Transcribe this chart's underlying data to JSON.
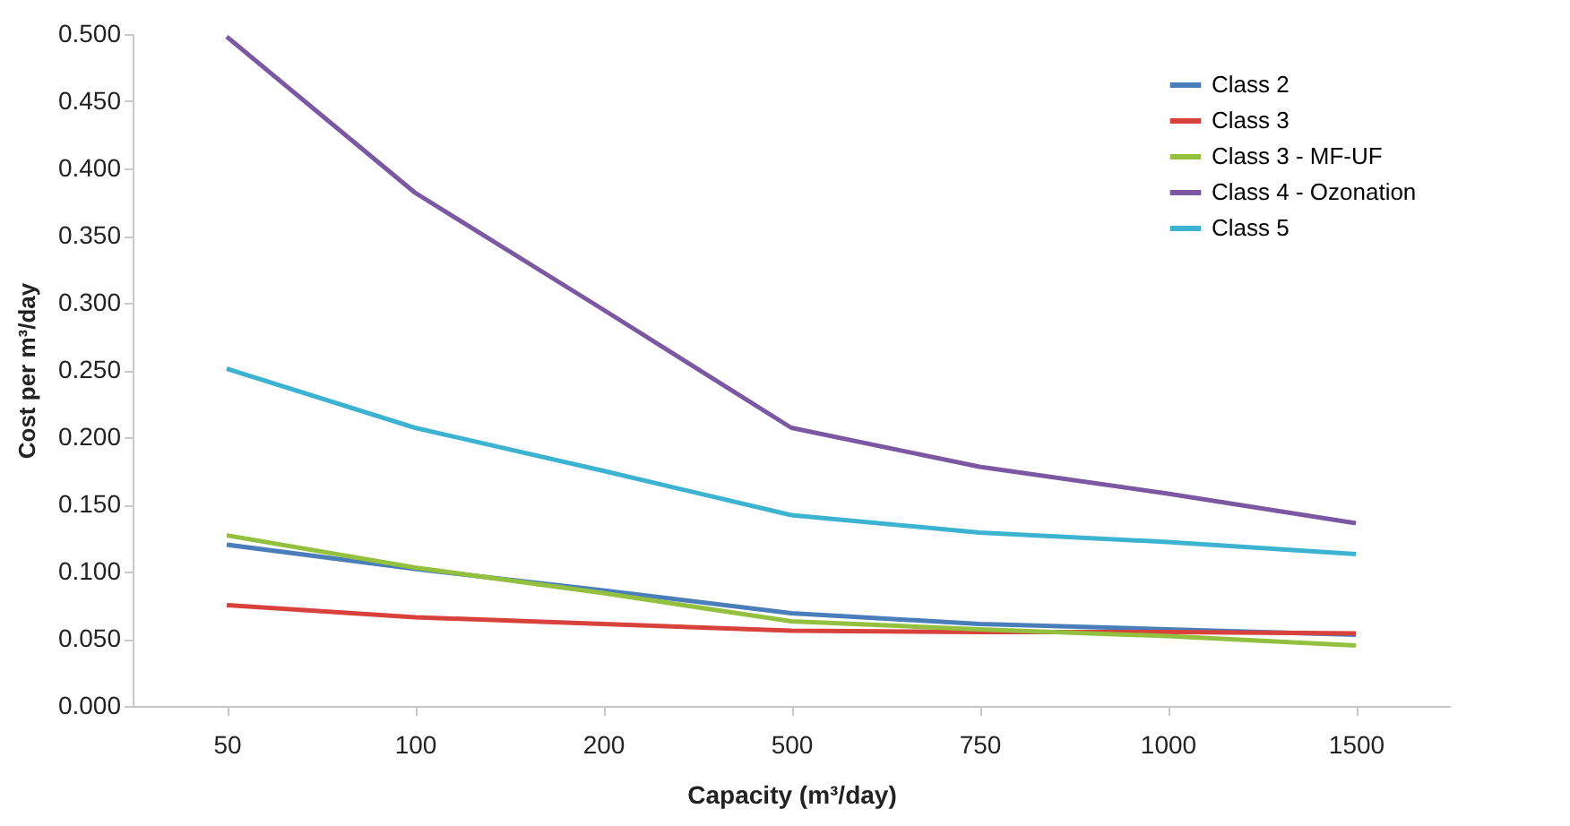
{
  "chart_data": {
    "type": "line",
    "xlabel": "Capacity (m³/day)",
    "ylabel": "Cost per m³/day",
    "categories": [
      "50",
      "100",
      "200",
      "500",
      "750",
      "1000",
      "1500"
    ],
    "series": [
      {
        "name": "Class 2",
        "color": "#4a7ebb",
        "values": [
          0.12,
          0.102,
          0.086,
          0.069,
          0.061,
          0.057,
          0.053
        ]
      },
      {
        "name": "Class 3",
        "color": "#d9413c",
        "values": [
          0.075,
          0.066,
          0.061,
          0.056,
          0.055,
          0.055,
          0.054
        ]
      },
      {
        "name": "Class 3 - MF-UF",
        "color": "#93c13f",
        "values": [
          0.127,
          0.103,
          0.084,
          0.063,
          0.057,
          0.052,
          0.045
        ]
      },
      {
        "name": "Class 4 - Ozonation",
        "color": "#7c58a3",
        "values": [
          0.498,
          0.382,
          0.295,
          0.207,
          0.178,
          0.158,
          0.136
        ]
      },
      {
        "name": "Class 5",
        "color": "#3cb3d1",
        "values": [
          0.251,
          0.207,
          0.175,
          0.142,
          0.129,
          0.122,
          0.113
        ]
      }
    ],
    "ylim": [
      0,
      0.5
    ],
    "yticks": [
      {
        "value": 0,
        "label": "0.000"
      },
      {
        "value": 0.05,
        "label": "0.050"
      },
      {
        "value": 0.1,
        "label": "0.100"
      },
      {
        "value": 0.15,
        "label": "0.150"
      },
      {
        "value": 0.2,
        "label": "0.200"
      },
      {
        "value": 0.25,
        "label": "0.250"
      },
      {
        "value": 0.3,
        "label": "0.300"
      },
      {
        "value": 0.35,
        "label": "0.350"
      },
      {
        "value": 0.4,
        "label": "0.400"
      },
      {
        "value": 0.45,
        "label": "0.450"
      },
      {
        "value": 0.5,
        "label": "0.500"
      }
    ],
    "legend": "top right",
    "grid": false,
    "line_style": "solid"
  }
}
